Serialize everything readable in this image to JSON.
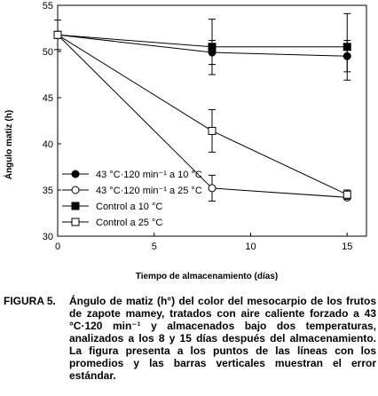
{
  "chart_data": {
    "type": "line",
    "xlabel": "Tiempo de almacenamiento (días)",
    "ylabel": "Ángulo matiz (h)",
    "xlim": [
      0,
      16
    ],
    "ylim": [
      30,
      55
    ],
    "xticks": [
      0,
      5,
      10,
      15
    ],
    "yticks": [
      30,
      35,
      40,
      45,
      50,
      55
    ],
    "legend_position": "bottom-left",
    "grid": false,
    "series": [
      {
        "name": "43 °C·120 min⁻¹ a 10 °C",
        "marker": "filled-circle",
        "x": [
          0,
          8,
          15
        ],
        "y": [
          51.8,
          49.9,
          49.5
        ],
        "err": [
          0,
          1.3,
          1.7
        ]
      },
      {
        "name": "43 °C·120 min⁻¹ a 25 °C",
        "marker": "open-circle",
        "x": [
          0,
          8,
          15
        ],
        "y": [
          51.8,
          35.2,
          34.2
        ],
        "err": [
          0,
          1.4,
          0
        ]
      },
      {
        "name": "Control a 10 °C",
        "marker": "filled-square",
        "x": [
          0,
          8,
          15
        ],
        "y": [
          51.8,
          50.5,
          50.5
        ],
        "err": [
          1.6,
          3.0,
          3.6
        ]
      },
      {
        "name": "Control a 25 °C",
        "marker": "open-square",
        "x": [
          0,
          8,
          15
        ],
        "y": [
          51.8,
          41.4,
          34.5
        ],
        "err": [
          0,
          2.3,
          0.5
        ]
      }
    ]
  },
  "caption": {
    "label": "FIGURA 5.",
    "text": "Ángulo de matiz (h°) del color del mesocarpio de los frutos de zapote mamey, tratados con aire caliente forzado a 43 °C·120 min⁻¹ y almacenados bajo dos temperaturas, analizados a los 8 y 15 días después del almacenamiento. La figura presenta a los puntos de las líneas con los promedios y las barras verticales muestran el error estándar."
  }
}
